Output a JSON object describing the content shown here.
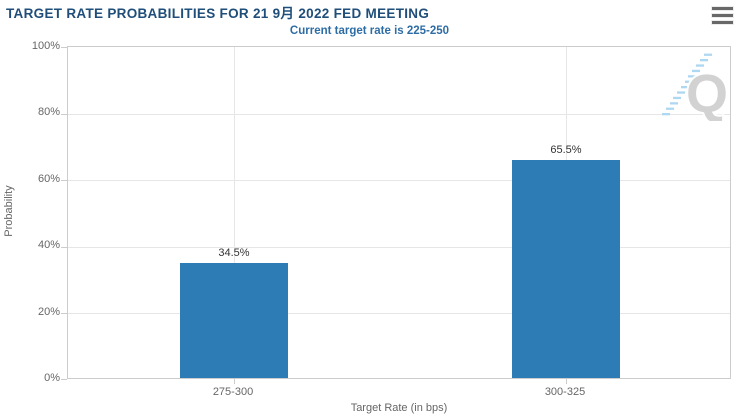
{
  "header": {
    "menu_icon": "hamburger-menu-icon"
  },
  "watermark": {
    "letter": "Q",
    "icon": "quikstrike-watermark",
    "letter_color": "#d2d2d2",
    "dash_color": "#aed7f1"
  },
  "colors": {
    "bar": "#2d7cb5",
    "title_text": "#1e4e79",
    "subtitle_text": "#2e6da4",
    "axis_text": "#666666",
    "gridline": "#e6e6e6",
    "plot_border": "#cccccc"
  },
  "chart_data": {
    "type": "bar",
    "title": "TARGET RATE PROBABILITIES FOR 21 9月 2022 FED MEETING",
    "subtitle": "Current target rate is 225-250",
    "categories": [
      "275-300",
      "300-325"
    ],
    "values": [
      34.5,
      65.5
    ],
    "value_labels": [
      "34.5%",
      "65.5%"
    ],
    "xlabel": "Target Rate (in bps)",
    "ylabel": "Probability",
    "ylim": [
      0,
      100
    ],
    "yticks": [
      "0%",
      "20%",
      "40%",
      "60%",
      "80%",
      "100%"
    ],
    "grid": true,
    "legend_position": "none",
    "bar_color": "#2d7cb5"
  }
}
